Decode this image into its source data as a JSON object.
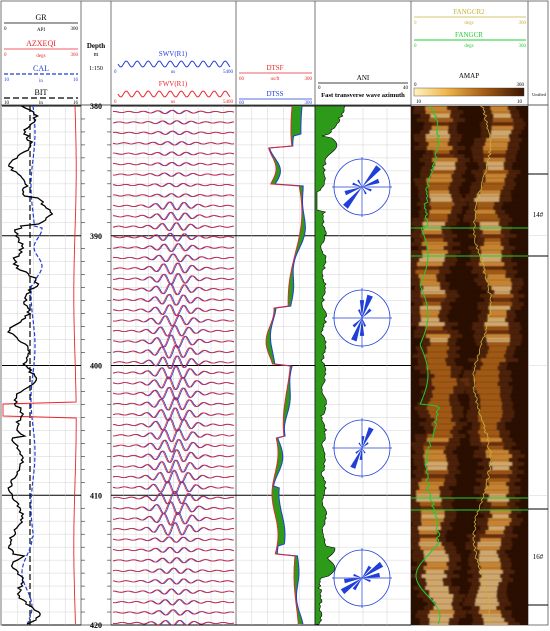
{
  "tracks": {
    "gamma": {
      "curves": [
        {
          "name": "GR",
          "unit": "API",
          "min": "0",
          "max": "300",
          "color": "#000000"
        },
        {
          "name": "AZXEQI",
          "unit": "degs",
          "min": "0",
          "max": "360",
          "color": "#e8262b"
        },
        {
          "name": "CAL",
          "unit": "in",
          "min": "10",
          "max": "16",
          "color": "#1f3fd8"
        },
        {
          "name": "BIT",
          "unit": "in",
          "min": "10",
          "max": "16",
          "color": "#000000"
        }
      ]
    },
    "depth": {
      "title": "Depth",
      "unit": "m",
      "scale": "1:150",
      "labels": [
        "380",
        "390",
        "400",
        "410",
        "420"
      ]
    },
    "waveforms": {
      "curves": [
        {
          "name": "SWV(R1)",
          "unit": "us",
          "min": "0",
          "max": "5400",
          "color": "#1f3fd8"
        },
        {
          "name": "FWV(R1)",
          "unit": "us",
          "min": "0",
          "max": "5400",
          "color": "#e8262b"
        }
      ]
    },
    "slowness": {
      "curves": [
        {
          "name": "DTSF",
          "unit": "us/ft",
          "min": "60",
          "max": "300",
          "color": "#e8262b"
        },
        {
          "name": "DTSS",
          "unit": "",
          "min": "60",
          "max": "300",
          "color": "#1f3fd8"
        }
      ]
    },
    "anisotropy": {
      "curve": {
        "name": "ANI",
        "min": "0",
        "max": "40"
      },
      "title": "Fast transverse wave azimuth"
    },
    "image": {
      "curves": [
        {
          "name": "FANGCR2",
          "unit": "degs",
          "min": "0",
          "max": "360",
          "color": "#c8b23a"
        },
        {
          "name": "FANGCR",
          "unit": "degs",
          "min": "0",
          "max": "360",
          "color": "#22cc33"
        }
      ],
      "map": {
        "name": "AMAP",
        "min": "0",
        "max": "360",
        "low_label": "10",
        "high_label": "10",
        "extra_label": "Unified"
      }
    },
    "markers": [
      "14#",
      "16#"
    ]
  },
  "colors": {
    "grid": "#c8c8c8",
    "bold": "#000000",
    "fill": "#2e9a1a",
    "red": "#e8262b",
    "blue": "#1f3fd8",
    "green": "#22cc33"
  }
}
